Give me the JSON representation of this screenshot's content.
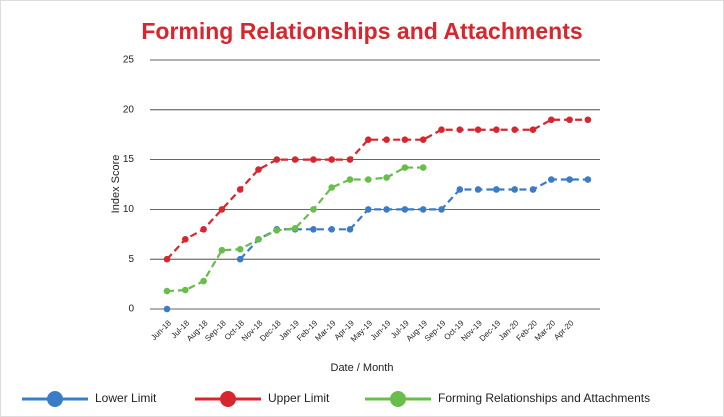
{
  "chart_data": {
    "type": "line",
    "title": "Forming Relationships and Attachments",
    "y_label": "Index Score",
    "x_label": "Date / Month",
    "categories": [
      "Jun-18",
      "Jul-18",
      "Aug-18",
      "Sep-18",
      "Oct-18",
      "Nov-18",
      "Dec-18",
      "Jan-19",
      "Feb-19",
      "Mar-19",
      "Apr-19",
      "May-19",
      "Jun-19",
      "Jul-19",
      "Aug-19",
      "Sep-19",
      "Oct-19",
      "Nov-19",
      "Dec-19",
      "Jan-20",
      "Feb-20",
      "Mar-20",
      "Apr-20",
      null
    ],
    "series": [
      {
        "name": "Lower Limit",
        "color": "#3a7cc8",
        "values": [
          0,
          null,
          null,
          null,
          5,
          7,
          8,
          8,
          8,
          8,
          8,
          10,
          10,
          10,
          10,
          10,
          12,
          12,
          12,
          12,
          12,
          13,
          13,
          13
        ]
      },
      {
        "name": "Upper Limit",
        "color": "#d7262d",
        "values": [
          5,
          7,
          8,
          10,
          12,
          14,
          15,
          15,
          15,
          15,
          15,
          17,
          17,
          17,
          17,
          18,
          18,
          18,
          18,
          18,
          18,
          19,
          19,
          19
        ]
      },
      {
        "name": "Forming Relationships and Attachments",
        "color": "#69bd4a",
        "values": [
          1.8,
          1.9,
          2.8,
          5.9,
          6.0,
          7.0,
          7.9,
          8.1,
          10.0,
          12.2,
          13.0,
          13.0,
          13.2,
          14.2,
          14.2,
          null,
          null,
          null,
          null,
          null,
          null,
          null,
          null,
          null
        ]
      }
    ],
    "ylim": [
      0,
      25
    ],
    "yticks": [
      0,
      5,
      10,
      15,
      20,
      25
    ],
    "grid": true
  }
}
